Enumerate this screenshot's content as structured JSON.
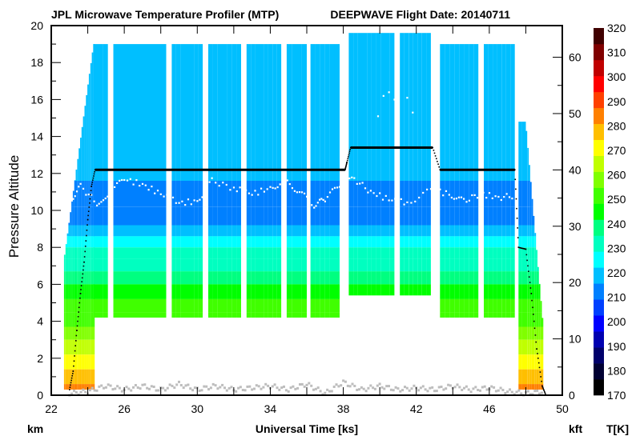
{
  "chart_data": {
    "type": "heatmap",
    "title_left": "JPL Microwave Temperature Profiler (MTP)",
    "title_right": "DEEPWAVE  Flight Date: 20140711",
    "xlabel": "Universal Time [ks]",
    "ylabel": "Pressure Altitude",
    "ylabel_left_unit": "km",
    "ylabel_right_unit": "kft",
    "colorbar_label": "T[K]",
    "xlim": [
      22,
      50
    ],
    "ylim_km": [
      0,
      20
    ],
    "ylim_kft": [
      0,
      65.6168
    ],
    "x_ticks": [
      22,
      26,
      30,
      34,
      38,
      42,
      46,
      50
    ],
    "x_minor_ticks": [
      24,
      28,
      32,
      36,
      40,
      44,
      48
    ],
    "y_ticks_km": [
      0,
      2,
      4,
      6,
      8,
      10,
      12,
      14,
      16,
      18,
      20
    ],
    "y_minor_ticks_km": [
      1,
      3,
      5,
      7,
      9,
      11,
      13,
      15,
      17,
      19
    ],
    "y_ticks_kft": [
      0,
      10,
      20,
      30,
      40,
      50,
      60
    ],
    "y_minor_ticks_kft": [
      5,
      15,
      25,
      35,
      45,
      55
    ],
    "colorbar": {
      "range": [
        170,
        320
      ],
      "ticks": [
        170,
        180,
        190,
        200,
        210,
        220,
        230,
        240,
        250,
        260,
        270,
        280,
        290,
        300,
        310,
        320
      ],
      "colors": [
        "#000000",
        "#000033",
        "#00006b",
        "#0000b0",
        "#0000ff",
        "#0040ff",
        "#0080ff",
        "#00bfff",
        "#00ffff",
        "#00ffc0",
        "#00ff80",
        "#00ff00",
        "#40ff00",
        "#80ff00",
        "#c0ff00",
        "#ffff00",
        "#ffbf00",
        "#ff8000",
        "#ff4000",
        "#ff0000",
        "#c00000",
        "#800000",
        "#400000"
      ]
    },
    "temperature_layers": [
      {
        "top_km": 20.0,
        "temp_k": 216
      },
      {
        "top_km": 11.6,
        "temp_k": 211
      },
      {
        "top_km": 10.2,
        "temp_k": 214
      },
      {
        "top_km": 9.2,
        "temp_k": 219
      },
      {
        "top_km": 8.6,
        "temp_k": 224
      },
      {
        "top_km": 8.0,
        "temp_k": 229
      },
      {
        "top_km": 7.4,
        "temp_k": 234
      },
      {
        "top_km": 6.7,
        "temp_k": 239
      },
      {
        "top_km": 6.0,
        "temp_k": 244
      },
      {
        "top_km": 5.2,
        "temp_k": 250
      },
      {
        "top_km": 4.5,
        "temp_k": 254
      },
      {
        "top_km": 3.7,
        "temp_k": 259
      },
      {
        "top_km": 3.0,
        "temp_k": 264
      },
      {
        "top_km": 2.2,
        "temp_k": 269
      },
      {
        "top_km": 1.4,
        "temp_k": 276
      },
      {
        "top_km": 0.6,
        "temp_k": 284
      }
    ],
    "segments": [
      {
        "start_ks": 24.3,
        "end_ks": 25.1,
        "top_km": 19.0,
        "bottom_km": 4.2
      },
      {
        "start_ks": 25.4,
        "end_ks": 28.3,
        "top_km": 19.0,
        "bottom_km": 4.2
      },
      {
        "start_ks": 28.6,
        "end_ks": 30.3,
        "top_km": 19.0,
        "bottom_km": 4.2
      },
      {
        "start_ks": 30.6,
        "end_ks": 32.4,
        "top_km": 19.0,
        "bottom_km": 4.2
      },
      {
        "start_ks": 32.7,
        "end_ks": 34.6,
        "top_km": 19.0,
        "bottom_km": 4.2
      },
      {
        "start_ks": 34.9,
        "end_ks": 36.0,
        "top_km": 19.0,
        "bottom_km": 4.2
      },
      {
        "start_ks": 36.2,
        "end_ks": 37.8,
        "top_km": 19.0,
        "bottom_km": 4.2
      },
      {
        "start_ks": 38.3,
        "end_ks": 40.8,
        "top_km": 19.6,
        "bottom_km": 5.4
      },
      {
        "start_ks": 41.1,
        "end_ks": 42.8,
        "top_km": 19.6,
        "bottom_km": 5.4
      },
      {
        "start_ks": 43.3,
        "end_ks": 45.4,
        "top_km": 19.0,
        "bottom_km": 4.2
      },
      {
        "start_ks": 45.7,
        "end_ks": 47.4,
        "top_km": 19.0,
        "bottom_km": 4.2
      },
      {
        "start_ks": 47.6,
        "end_ks": 48.0,
        "top_km": 14.8,
        "bottom_km": 0.3
      }
    ],
    "flight_altitude_km": [
      {
        "x": 23.0,
        "y": 0.3
      },
      {
        "x": 23.2,
        "y": 1.3
      },
      {
        "x": 23.4,
        "y": 3.5
      },
      {
        "x": 23.6,
        "y": 5.5
      },
      {
        "x": 23.8,
        "y": 7.2
      },
      {
        "x": 24.0,
        "y": 9.5
      },
      {
        "x": 24.2,
        "y": 11.3
      },
      {
        "x": 24.4,
        "y": 12.2
      },
      {
        "x": 38.1,
        "y": 12.2
      },
      {
        "x": 38.2,
        "y": 12.6
      },
      {
        "x": 38.4,
        "y": 13.4
      },
      {
        "x": 42.9,
        "y": 13.4
      },
      {
        "x": 43.3,
        "y": 12.2
      },
      {
        "x": 47.4,
        "y": 12.2
      },
      {
        "x": 47.6,
        "y": 8.0
      },
      {
        "x": 48.0,
        "y": 7.9
      },
      {
        "x": 48.3,
        "y": 5.5
      },
      {
        "x": 48.6,
        "y": 2.5
      },
      {
        "x": 48.9,
        "y": 0.5
      },
      {
        "x": 49.1,
        "y": 0.0
      }
    ],
    "tropopause_km": [
      {
        "x": 23.0,
        "y": 10.5
      },
      {
        "x": 23.6,
        "y": 11.3
      },
      {
        "x": 24.5,
        "y": 10.4
      },
      {
        "x": 25.2,
        "y": 11.0
      },
      {
        "x": 26.0,
        "y": 11.7
      },
      {
        "x": 27.0,
        "y": 11.4
      },
      {
        "x": 28.0,
        "y": 10.9
      },
      {
        "x": 29.0,
        "y": 10.4
      },
      {
        "x": 30.0,
        "y": 10.5
      },
      {
        "x": 30.8,
        "y": 11.6
      },
      {
        "x": 32.0,
        "y": 11.2
      },
      {
        "x": 33.0,
        "y": 10.9
      },
      {
        "x": 34.0,
        "y": 11.2
      },
      {
        "x": 34.8,
        "y": 11.6
      },
      {
        "x": 35.6,
        "y": 11.0
      },
      {
        "x": 36.4,
        "y": 10.3
      },
      {
        "x": 37.0,
        "y": 10.6
      },
      {
        "x": 37.8,
        "y": 11.4
      },
      {
        "x": 38.6,
        "y": 11.7
      },
      {
        "x": 39.5,
        "y": 11.0
      },
      {
        "x": 40.5,
        "y": 10.6
      },
      {
        "x": 41.5,
        "y": 10.4
      },
      {
        "x": 42.8,
        "y": 11.1
      },
      {
        "x": 43.8,
        "y": 10.9
      },
      {
        "x": 44.6,
        "y": 10.5
      },
      {
        "x": 45.5,
        "y": 10.9
      },
      {
        "x": 46.5,
        "y": 10.7
      },
      {
        "x": 47.4,
        "y": 10.8
      }
    ],
    "upper_white_points_km": [
      {
        "x": 40.2,
        "y": 16.2
      },
      {
        "x": 40.5,
        "y": 16.4
      },
      {
        "x": 40.8,
        "y": 16.0
      },
      {
        "x": 41.5,
        "y": 16.1
      },
      {
        "x": 41.8,
        "y": 15.3
      },
      {
        "x": 39.9,
        "y": 15.1
      }
    ],
    "surface_gray_km": [
      {
        "x": 23.0,
        "y": 0.1
      },
      {
        "x": 24.0,
        "y": 0.2
      },
      {
        "x": 25.0,
        "y": 0.5
      },
      {
        "x": 26.0,
        "y": 0.3
      },
      {
        "x": 27.0,
        "y": 0.5
      },
      {
        "x": 28.0,
        "y": 0.3
      },
      {
        "x": 29.0,
        "y": 0.6
      },
      {
        "x": 30.0,
        "y": 0.3
      },
      {
        "x": 31.0,
        "y": 0.5
      },
      {
        "x": 32.0,
        "y": 0.3
      },
      {
        "x": 33.0,
        "y": 0.4
      },
      {
        "x": 34.0,
        "y": 0.5
      },
      {
        "x": 35.0,
        "y": 0.3
      },
      {
        "x": 36.0,
        "y": 0.6
      },
      {
        "x": 37.0,
        "y": 0.1
      },
      {
        "x": 38.0,
        "y": 0.7
      },
      {
        "x": 39.0,
        "y": 0.3
      },
      {
        "x": 40.0,
        "y": 0.5
      },
      {
        "x": 41.0,
        "y": 0.3
      },
      {
        "x": 42.0,
        "y": 0.4
      },
      {
        "x": 43.0,
        "y": 0.3
      },
      {
        "x": 44.0,
        "y": 0.5
      },
      {
        "x": 45.0,
        "y": 0.3
      },
      {
        "x": 46.0,
        "y": 0.4
      },
      {
        "x": 47.0,
        "y": 0.2
      },
      {
        "x": 48.0,
        "y": 0.1
      },
      {
        "x": 49.0,
        "y": 0.2
      }
    ]
  }
}
